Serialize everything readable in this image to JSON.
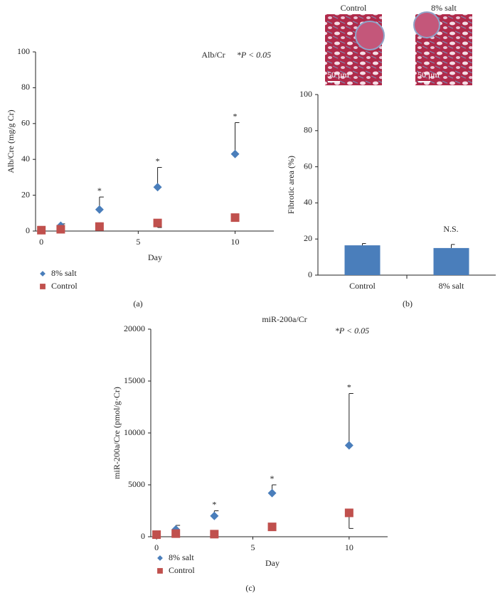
{
  "chart_data": [
    {
      "type": "scatter",
      "title": "Alb/Cr",
      "annotation": "*P < 0.05",
      "panel_label": "(a)",
      "x_label": "Day",
      "y_label": "Alb/Cre (mg/g Cr)",
      "x": [
        0,
        1,
        3,
        6,
        10
      ],
      "xlim": [
        -0.3,
        12
      ],
      "xticks": [
        0,
        5,
        10
      ],
      "ylim": [
        0,
        100
      ],
      "yticks": [
        0,
        20,
        40,
        60,
        80,
        100
      ],
      "significance_label": "*",
      "significant_x": [
        3,
        6,
        10
      ],
      "series": [
        {
          "name": "8% salt",
          "color": "#4a7ebb",
          "marker": "diamond",
          "error_side": "up",
          "values": [
            0.5,
            3,
            12,
            24.5,
            43
          ],
          "errors": [
            0,
            1,
            7,
            11,
            17.5
          ]
        },
        {
          "name": "Control",
          "color": "#c0504d",
          "marker": "square",
          "error_side": "down",
          "values": [
            0.5,
            1,
            2.5,
            4.5,
            7.5
          ],
          "errors": [
            0,
            0,
            0,
            2.5,
            0
          ]
        }
      ]
    },
    {
      "type": "bar",
      "annotation": "N.S.",
      "panel_label": "(b)",
      "y_label": "Fibrotic area (%)",
      "categories": [
        "Control",
        "8% salt"
      ],
      "values": [
        16.5,
        15
      ],
      "errors": [
        1,
        2
      ],
      "color": "#4a7ebb",
      "ylim": [
        0,
        100
      ],
      "yticks": [
        0,
        20,
        40,
        60,
        80,
        100
      ],
      "images": [
        {
          "caption": "Control",
          "scale_bar": "50 μm"
        },
        {
          "caption": "8% salt",
          "scale_bar": "50 μm"
        }
      ]
    },
    {
      "type": "scatter",
      "title": "miR-200a/Cr",
      "annotation": "*P < 0.05",
      "panel_label": "(c)",
      "x_label": "Day",
      "y_label": "miR-200a/Cre (pmol/g·Cr)",
      "x": [
        0,
        1,
        3,
        6,
        10
      ],
      "xlim": [
        -0.3,
        12
      ],
      "xticks": [
        0,
        5,
        10
      ],
      "ylim": [
        0,
        20000
      ],
      "yticks": [
        0,
        5000,
        10000,
        15000,
        20000
      ],
      "significance_label": "*",
      "significant_x": [
        3,
        6,
        10
      ],
      "series": [
        {
          "name": "8% salt",
          "color": "#4a7ebb",
          "marker": "diamond",
          "error_side": "up",
          "values": [
            200,
            700,
            2000,
            4200,
            8800
          ],
          "errors": [
            0,
            400,
            500,
            800,
            5000
          ]
        },
        {
          "name": "Control",
          "color": "#c0504d",
          "marker": "square",
          "error_side": "down",
          "values": [
            200,
            300,
            250,
            950,
            2300
          ],
          "errors": [
            0,
            0,
            0,
            0,
            1500
          ]
        }
      ]
    }
  ]
}
